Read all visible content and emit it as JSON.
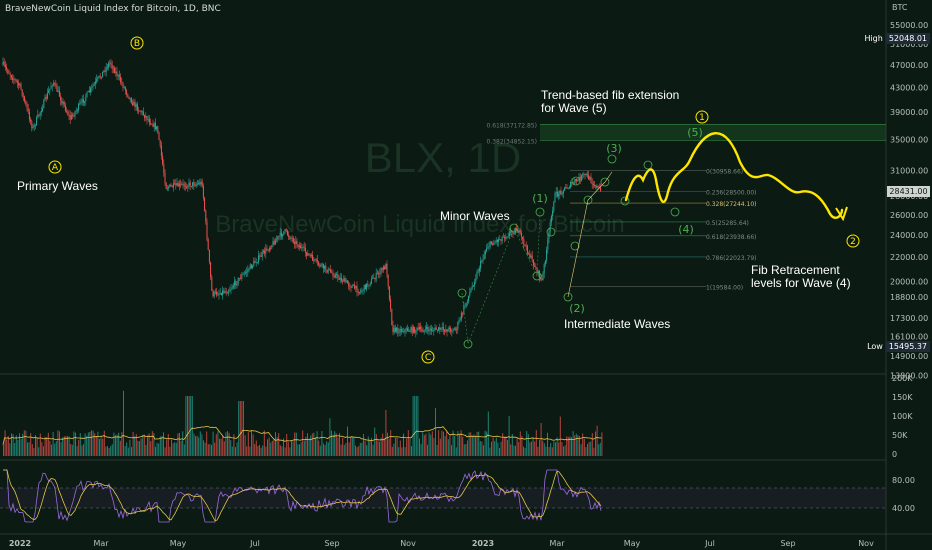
{
  "header": {
    "title": "BraveNewCoin Liquid Index for Bitcoin, 1D, BNC"
  },
  "watermark": {
    "symbol": "BLX, 1D",
    "name": "BraveNewCoin Liquid Index for Bitcoin"
  },
  "price_axis": {
    "currency": "BTC",
    "last_price": "28431.00",
    "high_label": "High",
    "high_value": "52048.01",
    "low_label": "Low",
    "low_value": "15495.37"
  },
  "colors": {
    "background": "#0b1a12",
    "up": "#26a69a",
    "down": "#ef5350",
    "annotation": "#ffe600",
    "wave_green": "#4caf50",
    "rsi": "#9c6ade",
    "rsi_ma": "#e8c547",
    "vol_ma": "#e8c547"
  },
  "annotations": {
    "primary_waves": "Primary Waves",
    "minor_waves": "Minor Waves",
    "intermediate_waves": "Intermediate Waves",
    "fib_ext": [
      "Trend-based fib extension",
      "for Wave (5)"
    ],
    "fib_ret": [
      "Fib Retracement",
      "levels for Wave (4)"
    ],
    "wave_A": "A",
    "wave_B": "B",
    "wave_C": "C",
    "wave_1": "1",
    "wave_2": "2",
    "int_1": "(1)",
    "int_2": "(2)",
    "int_3": "(3)",
    "int_4": "(4)",
    "int_5": "(5)"
  },
  "chart_data": [
    {
      "type": "candlestick",
      "title": "BraveNewCoin Liquid Index for Bitcoin, 1D, BNC",
      "x_ticks": [
        "2022",
        "Mar",
        "May",
        "Jul",
        "Sep",
        "Nov",
        "2023",
        "Mar",
        "May",
        "Jul",
        "Sep",
        "Nov"
      ],
      "y_ticks": [
        "55000.00",
        "51000.00",
        "47000.00",
        "43000.00",
        "39000.00",
        "35000.00",
        "31000.00",
        "28000.00",
        "26000.00",
        "24000.00",
        "22000.00",
        "20000.00",
        "18800.00",
        "17300.00",
        "16100.00",
        "14900.00",
        "13800.00"
      ],
      "scale": "log",
      "ylim": [
        13800,
        55000
      ],
      "close_series": [
        {
          "date": "2022-01-01",
          "close": 47000
        },
        {
          "date": "2022-01-15",
          "close": 43000
        },
        {
          "date": "2022-01-25",
          "close": 36500
        },
        {
          "date": "2022-02-10",
          "close": 44000
        },
        {
          "date": "2022-02-24",
          "close": 38000
        },
        {
          "date": "2022-03-28",
          "close": 47500
        },
        {
          "date": "2022-04-15",
          "close": 40500
        },
        {
          "date": "2022-05-05",
          "close": 36500
        },
        {
          "date": "2022-05-12",
          "close": 29000
        },
        {
          "date": "2022-06-10",
          "close": 29500
        },
        {
          "date": "2022-06-18",
          "close": 19000
        },
        {
          "date": "2022-07-01",
          "close": 19300
        },
        {
          "date": "2022-08-15",
          "close": 24400
        },
        {
          "date": "2022-09-10",
          "close": 21500
        },
        {
          "date": "2022-10-15",
          "close": 19200
        },
        {
          "date": "2022-11-05",
          "close": 21300
        },
        {
          "date": "2022-11-10",
          "close": 16500
        },
        {
          "date": "2022-12-31",
          "close": 16550
        },
        {
          "date": "2023-01-25",
          "close": 23000
        },
        {
          "date": "2023-02-18",
          "close": 24600
        },
        {
          "date": "2023-03-10",
          "close": 20000
        },
        {
          "date": "2023-03-20",
          "close": 28000
        },
        {
          "date": "2023-04-14",
          "close": 30500
        },
        {
          "date": "2023-04-27",
          "close": 28431
        }
      ],
      "fib_extension": [
        {
          "level": "0.618",
          "price": 37172.85
        },
        {
          "level": "0.382",
          "price": 34852.15
        },
        {
          "level": "0",
          "price": 31000
        }
      ],
      "fib_retracement": [
        {
          "level": "0",
          "price": 30958.66
        },
        {
          "level": "0.236",
          "price": 28500
        },
        {
          "level": "0.328",
          "price": 27244.1
        },
        {
          "level": "0.5",
          "price": 25285.64
        },
        {
          "level": "0.618",
          "price": 23938.66
        },
        {
          "level": "0.786",
          "price": 22023.79
        },
        {
          "level": "1",
          "price": 19584.0
        }
      ]
    },
    {
      "type": "bar",
      "title": "",
      "y_ticks": [
        "200K",
        "150K",
        "100K",
        "50K",
        "0"
      ]
    },
    {
      "type": "line",
      "title": "",
      "y_ticks": [
        "80.00",
        "40.00"
      ]
    }
  ]
}
